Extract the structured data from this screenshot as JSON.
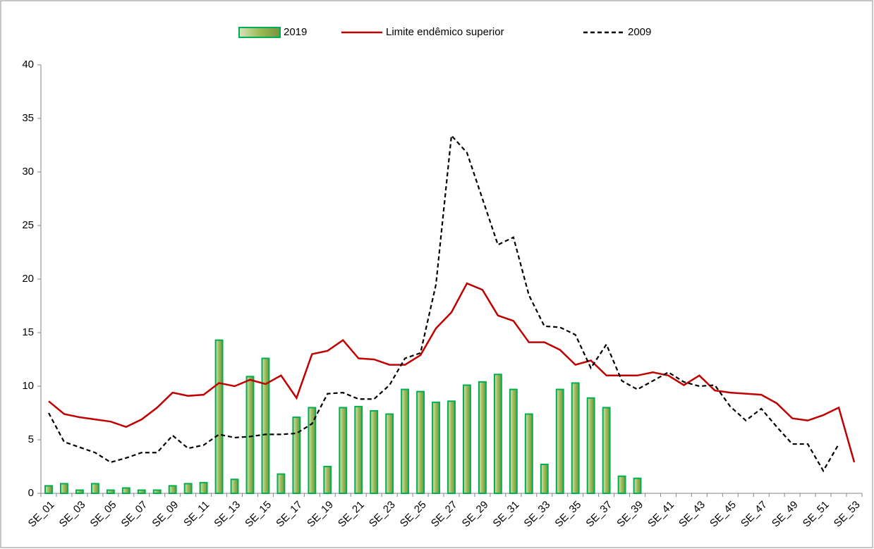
{
  "chart_data": {
    "type": "bar_line",
    "categories": [
      "SE_01",
      null,
      "SE_03",
      null,
      "SE_05",
      null,
      "SE_07",
      null,
      "SE_09",
      null,
      "SE_11",
      null,
      "SE_13",
      null,
      "SE_15",
      null,
      "SE_17",
      null,
      "SE_19",
      null,
      "SE_21",
      null,
      "SE_23",
      null,
      "SE_25",
      null,
      "SE_27",
      null,
      "SE_29",
      null,
      "SE_31",
      null,
      "SE_33",
      null,
      "SE_35",
      null,
      "SE_37",
      null,
      "SE_39",
      null,
      "SE_41",
      null,
      "SE_43",
      null,
      "SE_45",
      null,
      "SE_47",
      null,
      "SE_49",
      null,
      "SE_51",
      null,
      "SE_53"
    ],
    "series": [
      {
        "name": "2019",
        "kind": "bar",
        "color": "#9bbb59",
        "edge": "#00b050",
        "values": [
          0.7,
          0.9,
          0.3,
          0.9,
          0.3,
          0.5,
          0.3,
          0.3,
          0.7,
          0.9,
          1.0,
          14.3,
          1.3,
          10.9,
          12.6,
          1.8,
          7.1,
          8.0,
          2.5,
          8.0,
          8.1,
          7.7,
          7.4,
          9.7,
          9.5,
          8.5,
          8.6,
          10.1,
          10.4,
          11.1,
          9.7,
          7.4,
          2.7,
          9.7,
          10.3,
          8.9,
          8.0,
          1.6,
          1.4,
          null,
          null,
          null,
          null,
          null,
          null,
          null,
          null,
          null,
          null,
          null,
          null,
          null,
          null
        ]
      },
      {
        "name": "Limite endêmico superior",
        "kind": "line",
        "color": "#c00000",
        "dash": "solid",
        "values": [
          8.6,
          7.4,
          7.1,
          6.9,
          6.7,
          6.2,
          6.9,
          8.0,
          9.4,
          9.1,
          9.2,
          10.3,
          10.0,
          10.6,
          10.2,
          11.0,
          8.9,
          13.0,
          13.3,
          14.3,
          12.6,
          12.5,
          12.0,
          12.0,
          12.9,
          15.4,
          16.9,
          19.6,
          19.0,
          16.6,
          16.1,
          14.1,
          14.1,
          13.4,
          12.0,
          12.4,
          11.0,
          11.0,
          11.0,
          11.3,
          11.0,
          10.1,
          11.0,
          9.6,
          9.4,
          9.3,
          9.2,
          8.4,
          7.0,
          6.8,
          7.3,
          8.0,
          2.9
        ]
      },
      {
        "name": "2009",
        "kind": "line",
        "color": "#000000",
        "dash": "dashed",
        "values": [
          7.5,
          4.8,
          4.3,
          3.8,
          2.9,
          3.3,
          3.8,
          3.8,
          5.4,
          4.2,
          4.5,
          5.5,
          5.2,
          5.3,
          5.5,
          5.5,
          5.6,
          6.5,
          9.3,
          9.4,
          8.8,
          8.8,
          10.1,
          12.6,
          13.1,
          19.5,
          33.4,
          31.8,
          27.5,
          23.2,
          23.9,
          18.5,
          15.6,
          15.5,
          14.8,
          11.7,
          13.9,
          10.5,
          9.7,
          10.5,
          11.3,
          10.4,
          10.0,
          10.1,
          8.1,
          6.8,
          7.9,
          6.2,
          4.6,
          4.6,
          2.1,
          4.6,
          null
        ]
      }
    ],
    "ylim": [
      0,
      40
    ],
    "yticks": [
      0,
      5,
      10,
      15,
      20,
      25,
      30,
      35,
      40
    ],
    "grid": false,
    "legend": "top"
  }
}
